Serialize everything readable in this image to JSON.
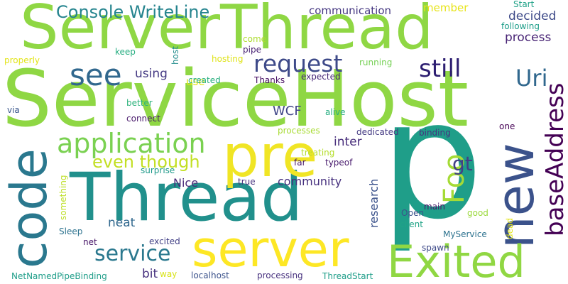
{
  "words": [
    {
      "text": "ServiceHost",
      "color": "#8fd744"
    },
    {
      "text": "p",
      "color": "#1f9e89"
    },
    {
      "text": "ServerThread",
      "color": "#8fd744"
    },
    {
      "text": "Thread",
      "color": "#21908c"
    },
    {
      "text": "server",
      "color": "#fde725"
    },
    {
      "text": "pre",
      "color": "#f0e525"
    },
    {
      "text": "code",
      "color": "#2a788e"
    },
    {
      "text": "new",
      "color": "#3b528b"
    },
    {
      "text": "Exited",
      "color": "#90d743"
    },
    {
      "text": "application",
      "color": "#7ad151"
    },
    {
      "text": "baseAddress",
      "color": "#440154"
    },
    {
      "text": "Foo",
      "color": "#a5db36"
    },
    {
      "text": "see",
      "color": "#31688e"
    },
    {
      "text": "request",
      "color": "#3e4a89"
    },
    {
      "text": "still",
      "color": "#2d1e71"
    },
    {
      "text": "Uri",
      "color": "#31688e"
    },
    {
      "text": "service",
      "color": "#2a788e"
    },
    {
      "text": "Console WriteLine",
      "color": "#25848e"
    },
    {
      "text": "even though",
      "color": "#c2df23"
    },
    {
      "text": "gt",
      "color": "#424086"
    },
    {
      "text": "communication",
      "color": "#453781"
    },
    {
      "text": "decided",
      "color": "#3e4a89"
    },
    {
      "text": "process",
      "color": "#482475"
    },
    {
      "text": "member",
      "color": "#e7e419"
    },
    {
      "text": "using",
      "color": "#443983"
    },
    {
      "text": "use",
      "color": "#e2e418"
    },
    {
      "text": "WCF",
      "color": "#404688"
    },
    {
      "text": "inter",
      "color": "#472d7b"
    },
    {
      "text": "community",
      "color": "#46307e"
    },
    {
      "text": "Nice",
      "color": "#482878"
    },
    {
      "text": "research",
      "color": "#3b528b"
    },
    {
      "text": "neat",
      "color": "#31688e"
    },
    {
      "text": "bit",
      "color": "#46307e"
    },
    {
      "text": "Start",
      "color": "#1fa187"
    },
    {
      "text": "following",
      "color": "#1f9e89"
    },
    {
      "text": "come",
      "color": "#addc30"
    },
    {
      "text": "pipe",
      "color": "#482173"
    },
    {
      "text": "keep",
      "color": "#26ad81"
    },
    {
      "text": "host",
      "color": "#228d8d"
    },
    {
      "text": "hosting",
      "color": "#dfe318"
    },
    {
      "text": "running",
      "color": "#75d054"
    },
    {
      "text": "properly",
      "color": "#e2e418"
    },
    {
      "text": "created",
      "color": "#2ab07f"
    },
    {
      "text": "Thanks",
      "color": "#471063"
    },
    {
      "text": "expected",
      "color": "#482878"
    },
    {
      "text": "better",
      "color": "#2eb37c"
    },
    {
      "text": "via",
      "color": "#39568c"
    },
    {
      "text": "connect",
      "color": "#48186a"
    },
    {
      "text": "alive",
      "color": "#26ad81"
    },
    {
      "text": "processes",
      "color": "#a8db34"
    },
    {
      "text": "dedicated",
      "color": "#443a83"
    },
    {
      "text": "binding",
      "color": "#46337f"
    },
    {
      "text": "one",
      "color": "#440154"
    },
    {
      "text": "treating",
      "color": "#b5de2b"
    },
    {
      "text": "far",
      "color": "#48186a"
    },
    {
      "text": "typeof",
      "color": "#481b6d"
    },
    {
      "text": "surprise",
      "color": "#1f9a8a"
    },
    {
      "text": "true",
      "color": "#46337f"
    },
    {
      "text": "something",
      "color": "#bddf26"
    },
    {
      "text": "Open",
      "color": "#3b528b"
    },
    {
      "text": "main",
      "color": "#481668"
    },
    {
      "text": "good",
      "color": "#9bd93c"
    },
    {
      "text": "client",
      "color": "#20a386"
    },
    {
      "text": "Sleep",
      "color": "#2c728e"
    },
    {
      "text": "net",
      "color": "#481668"
    },
    {
      "text": "excited",
      "color": "#424086"
    },
    {
      "text": "MyService",
      "color": "#2c728e"
    },
    {
      "text": "dead",
      "color": "#e2e418"
    },
    {
      "text": "spawn",
      "color": "#3e4a89"
    },
    {
      "text": "NetNamedPipeBinding",
      "color": "#1f9e89"
    },
    {
      "text": "way",
      "color": "#d8e219"
    },
    {
      "text": "localhost",
      "color": "#3b528b"
    },
    {
      "text": "processing",
      "color": "#46307e"
    },
    {
      "text": "ThreadStart",
      "color": "#1f9e89"
    }
  ]
}
